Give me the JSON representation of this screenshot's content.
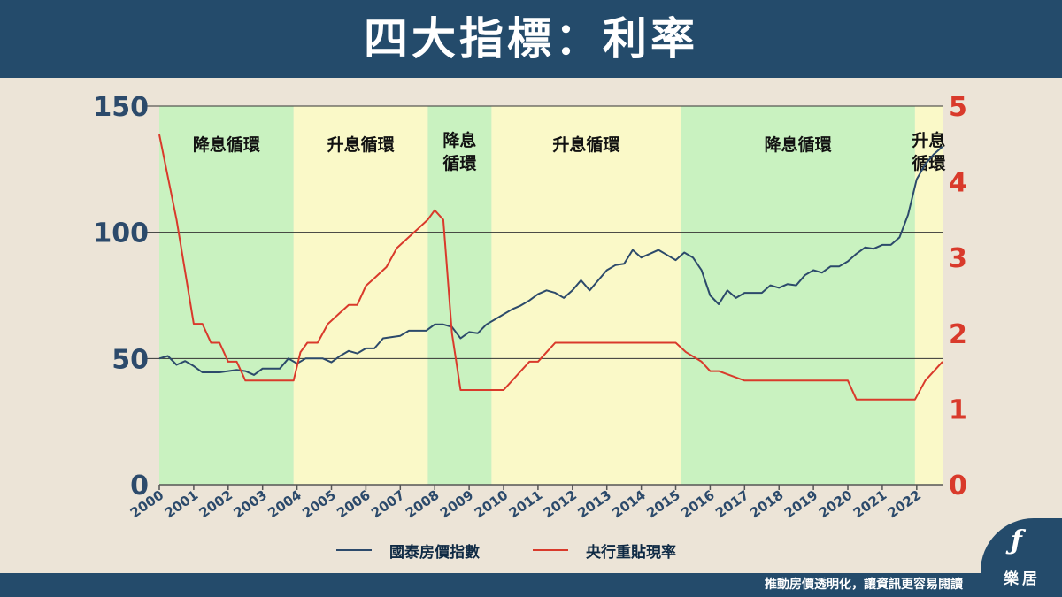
{
  "header": {
    "title": "四大指標：利率"
  },
  "chart_data": {
    "type": "line",
    "x_ticks": [
      "2000",
      "2001",
      "2002",
      "2003",
      "2004",
      "2005",
      "2006",
      "2007",
      "2008",
      "2009",
      "2010",
      "2011",
      "2012",
      "2013",
      "2014",
      "2015",
      "2016",
      "2017",
      "2018",
      "2019",
      "2020",
      "2021",
      "2022"
    ],
    "y_left": {
      "lim": [
        0,
        150
      ],
      "ticks": [
        0,
        50,
        100,
        150
      ],
      "color": "#2c4a6b"
    },
    "y_right": {
      "lim": [
        0,
        5
      ],
      "ticks": [
        0,
        1,
        2,
        3,
        4,
        5
      ],
      "color": "#d93a2b"
    },
    "gridlines": [
      50,
      100
    ],
    "regions": [
      {
        "start": 2000.0,
        "end": 2003.9,
        "label": "降息循環",
        "kind": "cut",
        "color": "#c9f2c0"
      },
      {
        "start": 2003.9,
        "end": 2007.8,
        "label": "升息循環",
        "kind": "hike",
        "color": "#faf9c8"
      },
      {
        "start": 2007.8,
        "end": 2009.65,
        "label": "降息\n循環",
        "kind": "cut",
        "color": "#c9f2c0"
      },
      {
        "start": 2009.65,
        "end": 2015.15,
        "label": "升息循環",
        "kind": "hike",
        "color": "#faf9c8"
      },
      {
        "start": 2015.15,
        "end": 2021.95,
        "label": "降息循環",
        "kind": "cut",
        "color": "#c9f2c0"
      },
      {
        "start": 2021.95,
        "end": 2022.75,
        "label": "升息\n循環",
        "kind": "hike",
        "color": "#faf9c8"
      }
    ],
    "series": [
      {
        "name": "國泰房價指數",
        "axis": "left",
        "color": "#2c4a6b",
        "x": [
          2000.0,
          2000.25,
          2000.5,
          2000.75,
          2001.0,
          2001.25,
          2001.5,
          2001.75,
          2002.0,
          2002.25,
          2002.5,
          2002.75,
          2003.0,
          2003.25,
          2003.5,
          2003.75,
          2004.0,
          2004.25,
          2004.5,
          2004.75,
          2005.0,
          2005.25,
          2005.5,
          2005.75,
          2006.0,
          2006.25,
          2006.5,
          2006.75,
          2007.0,
          2007.25,
          2007.5,
          2007.75,
          2008.0,
          2008.25,
          2008.5,
          2008.75,
          2009.0,
          2009.25,
          2009.5,
          2009.75,
          2010.0,
          2010.25,
          2010.5,
          2010.75,
          2011.0,
          2011.25,
          2011.5,
          2011.75,
          2012.0,
          2012.25,
          2012.5,
          2012.75,
          2013.0,
          2013.25,
          2013.5,
          2013.75,
          2014.0,
          2014.25,
          2014.5,
          2014.75,
          2015.0,
          2015.25,
          2015.5,
          2015.75,
          2016.0,
          2016.25,
          2016.5,
          2016.75,
          2017.0,
          2017.25,
          2017.5,
          2017.75,
          2018.0,
          2018.25,
          2018.5,
          2018.75,
          2019.0,
          2019.25,
          2019.5,
          2019.75,
          2020.0,
          2020.25,
          2020.5,
          2020.75,
          2021.0,
          2021.25,
          2021.5,
          2021.75,
          2022.0,
          2022.25,
          2022.5,
          2022.75
        ],
        "values": [
          50,
          51,
          47.5,
          49,
          47,
          44.5,
          44.5,
          44.5,
          45,
          45.5,
          45,
          43.5,
          46,
          46,
          46,
          50,
          48,
          50,
          50,
          50,
          48.5,
          51,
          53,
          52,
          54,
          54,
          58,
          58.5,
          59,
          61,
          61,
          61,
          63.5,
          63.5,
          62.5,
          58,
          60.5,
          60,
          63.5,
          65.5,
          67.5,
          69.5,
          71,
          73,
          75.5,
          77,
          76,
          74,
          77,
          81,
          77,
          81,
          85,
          87,
          87.5,
          93,
          90,
          91.5,
          93,
          91,
          89,
          92,
          90,
          85,
          75,
          71.5,
          77,
          74,
          76,
          76,
          76,
          79,
          78,
          79.5,
          79,
          83,
          85,
          84,
          86.5,
          86.5,
          88.5,
          91.5,
          94,
          93.5,
          95,
          95,
          98,
          107,
          121,
          127,
          131,
          134
        ]
      },
      {
        "name": "央行重貼現率",
        "axis": "right",
        "color": "#d93a2b",
        "x": [
          2000.0,
          2000.5,
          2001.0,
          2001.25,
          2001.5,
          2001.75,
          2002.0,
          2002.25,
          2002.5,
          2003.0,
          2003.5,
          2003.9,
          2004.1,
          2004.3,
          2004.6,
          2004.9,
          2005.2,
          2005.5,
          2005.75,
          2006.0,
          2006.3,
          2006.6,
          2006.9,
          2007.2,
          2007.5,
          2007.8,
          2008.0,
          2008.25,
          2008.5,
          2008.75,
          2009.0,
          2009.5,
          2010.0,
          2010.5,
          2010.75,
          2011.0,
          2011.25,
          2011.5,
          2012.0,
          2013.0,
          2014.0,
          2015.0,
          2015.3,
          2015.75,
          2016.0,
          2016.25,
          2017.0,
          2019.0,
          2019.75,
          2020.0,
          2020.25,
          2021.0,
          2021.95,
          2022.25,
          2022.75
        ],
        "values": [
          4.625,
          3.5,
          2.125,
          2.125,
          1.875,
          1.875,
          1.625,
          1.625,
          1.375,
          1.375,
          1.375,
          1.375,
          1.75,
          1.875,
          1.875,
          2.125,
          2.25,
          2.375,
          2.375,
          2.625,
          2.75,
          2.875,
          3.125,
          3.25,
          3.375,
          3.5,
          3.625,
          3.5,
          2.0,
          1.25,
          1.25,
          1.25,
          1.25,
          1.5,
          1.625,
          1.625,
          1.75,
          1.875,
          1.875,
          1.875,
          1.875,
          1.875,
          1.75,
          1.625,
          1.5,
          1.5,
          1.375,
          1.375,
          1.375,
          1.375,
          1.125,
          1.125,
          1.125,
          1.375,
          1.625
        ]
      }
    ]
  },
  "legend": {
    "items": [
      "國泰房價指數",
      "央行重貼現率"
    ]
  },
  "footer": {
    "slogan": "推動房價透明化，讓資訊更容易閱讀"
  },
  "brand": {
    "logo_text": "樂居",
    "colors": {
      "header_bg": "#244b6b",
      "page_bg": "#ece4d7"
    }
  }
}
